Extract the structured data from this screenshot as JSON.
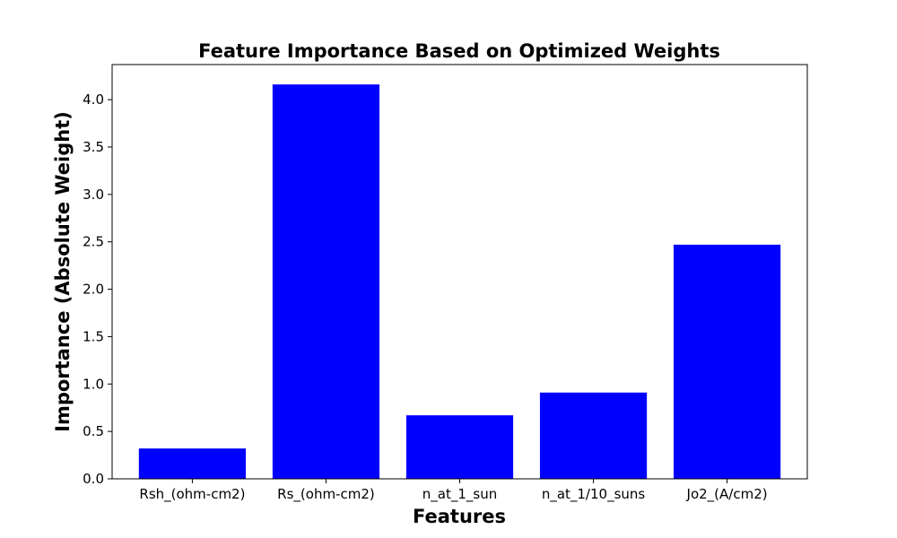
{
  "chart_data": {
    "type": "bar",
    "title": "Feature Importance Based on Optimized Weights",
    "xlabel": "Features",
    "ylabel": "Importance (Absolute Weight)",
    "categories": [
      "Rsh_(ohm-cm2)",
      "Rs_(ohm-cm2)",
      "n_at_1_sun",
      "n_at_1/10_suns",
      "Jo2_(A/cm2)"
    ],
    "values": [
      0.32,
      4.16,
      0.67,
      0.91,
      2.47
    ],
    "ylim": [
      0,
      4.37
    ],
    "yticks": [
      "0.0",
      "0.5",
      "1.0",
      "1.5",
      "2.0",
      "2.5",
      "3.0",
      "3.5",
      "4.0"
    ],
    "bar_color": "#0000ff",
    "grid": false,
    "legend": "none"
  }
}
